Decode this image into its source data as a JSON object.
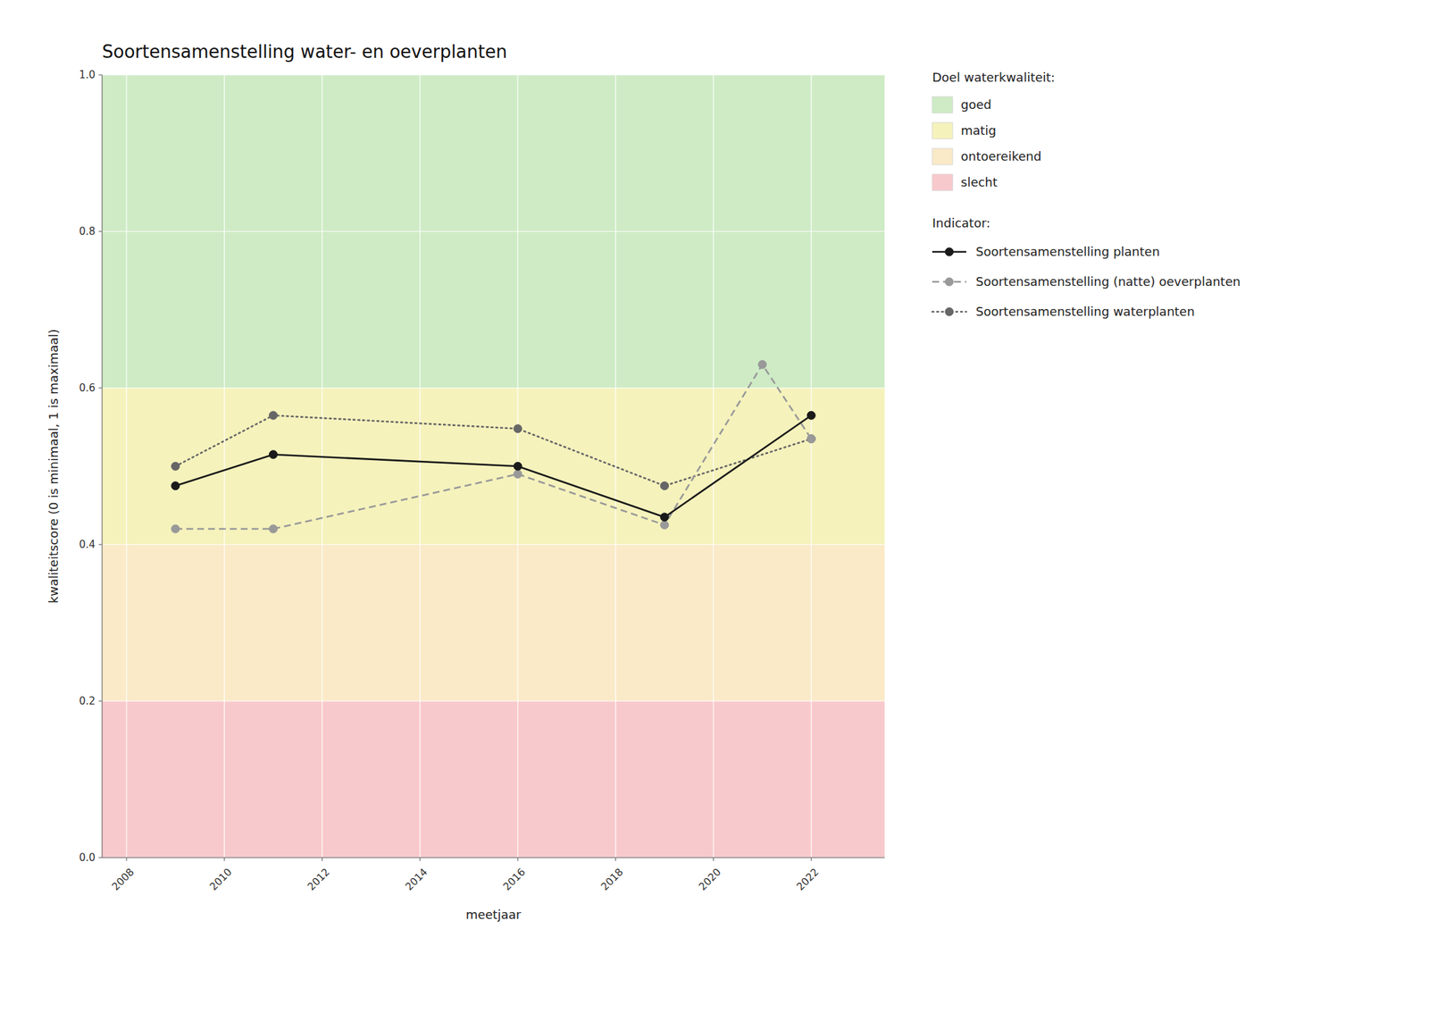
{
  "chart_data": {
    "type": "line",
    "title": "Soortensamenstelling water- en oeverplanten",
    "x_label": "meetjaar",
    "y_label": "kwaliteitscore (0 is minimaal, 1 is maximaal)",
    "xlim": [
      2007.5,
      2023.5
    ],
    "ylim": [
      0.0,
      1.0
    ],
    "xticks": [
      2008,
      2010,
      2012,
      2014,
      2016,
      2018,
      2020,
      2022
    ],
    "yticks": [
      {
        "value": 0.0,
        "label": "0.0"
      },
      0.2,
      0.4,
      0.6,
      0.8,
      {
        "value": 1.0,
        "label": "1.0"
      }
    ],
    "grid": true,
    "legend": "right",
    "bands_title": "Doel waterkwaliteit:",
    "bands": [
      {
        "name": "goed",
        "color": "#ceebc5",
        "range": [
          0.6,
          1.0
        ]
      },
      {
        "name": "matig",
        "color": "#f5f2bc",
        "range": [
          0.4,
          0.6
        ]
      },
      {
        "name": "ontoereikend",
        "color": "#faeac8",
        "range": [
          0.2,
          0.4
        ]
      },
      {
        "name": "slecht",
        "color": "#f8c9cc",
        "range": [
          0.0,
          0.2
        ]
      }
    ],
    "series_title": "Indicator:",
    "series": [
      {
        "name": "Soortensamenstelling planten",
        "color": "#1a1a1a",
        "line_style": "solid",
        "marker": "circle",
        "x": [
          2009,
          2011,
          2016,
          2019,
          2022
        ],
        "values": [
          0.475,
          0.515,
          0.5,
          0.435,
          0.565
        ]
      },
      {
        "name": "Soortensamenstelling (natte) oeverplanten",
        "color": "#999999",
        "line_style": "dashed",
        "marker": "circle",
        "x": [
          2009,
          2011,
          2016,
          2019,
          2021,
          2022
        ],
        "values": [
          0.42,
          0.42,
          0.49,
          0.425,
          0.63,
          0.535
        ]
      },
      {
        "name": "Soortensamenstelling waterplanten",
        "color": "#666666",
        "line_style": "dotted",
        "marker": "circle",
        "x": [
          2009,
          2011,
          2016,
          2019,
          2022
        ],
        "values": [
          0.5,
          0.565,
          0.548,
          0.475,
          0.535
        ]
      }
    ]
  }
}
